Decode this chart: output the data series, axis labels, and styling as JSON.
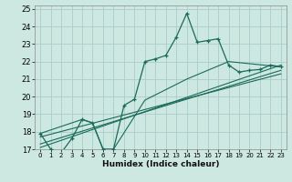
{
  "xlabel": "Humidex (Indice chaleur)",
  "background_color": "#cce8e0",
  "grid_color": "#aacccc",
  "line_color": "#1a6b5a",
  "xlim": [
    -0.5,
    23.5
  ],
  "ylim": [
    17,
    25.2
  ],
  "xticks": [
    0,
    1,
    2,
    3,
    4,
    5,
    6,
    7,
    8,
    9,
    10,
    11,
    12,
    13,
    14,
    15,
    16,
    17,
    18,
    19,
    20,
    21,
    22,
    23
  ],
  "yticks": [
    17,
    18,
    19,
    20,
    21,
    22,
    23,
    24,
    25
  ],
  "series1_x": [
    0,
    1,
    2,
    3,
    4,
    5,
    6,
    7,
    8,
    9,
    10,
    11,
    12,
    13,
    14,
    15,
    16,
    17,
    18,
    19,
    20,
    21,
    22,
    23
  ],
  "series1_y": [
    17.9,
    17.0,
    16.8,
    17.6,
    18.7,
    18.5,
    17.0,
    17.0,
    19.5,
    19.85,
    22.0,
    22.15,
    22.35,
    23.4,
    24.75,
    23.1,
    23.2,
    23.3,
    21.8,
    21.4,
    21.5,
    21.55,
    21.8,
    21.7
  ],
  "series2_x": [
    0,
    4,
    5,
    6,
    7,
    10,
    14,
    18,
    23
  ],
  "series2_y": [
    17.9,
    18.7,
    18.5,
    17.0,
    17.0,
    19.8,
    21.0,
    22.0,
    21.7
  ],
  "series3_x": [
    0,
    23
  ],
  "series3_y": [
    17.1,
    21.8
  ],
  "series4_x": [
    0,
    23
  ],
  "series4_y": [
    17.3,
    21.5
  ],
  "series5_x": [
    0,
    23
  ],
  "series5_y": [
    17.7,
    21.3
  ]
}
